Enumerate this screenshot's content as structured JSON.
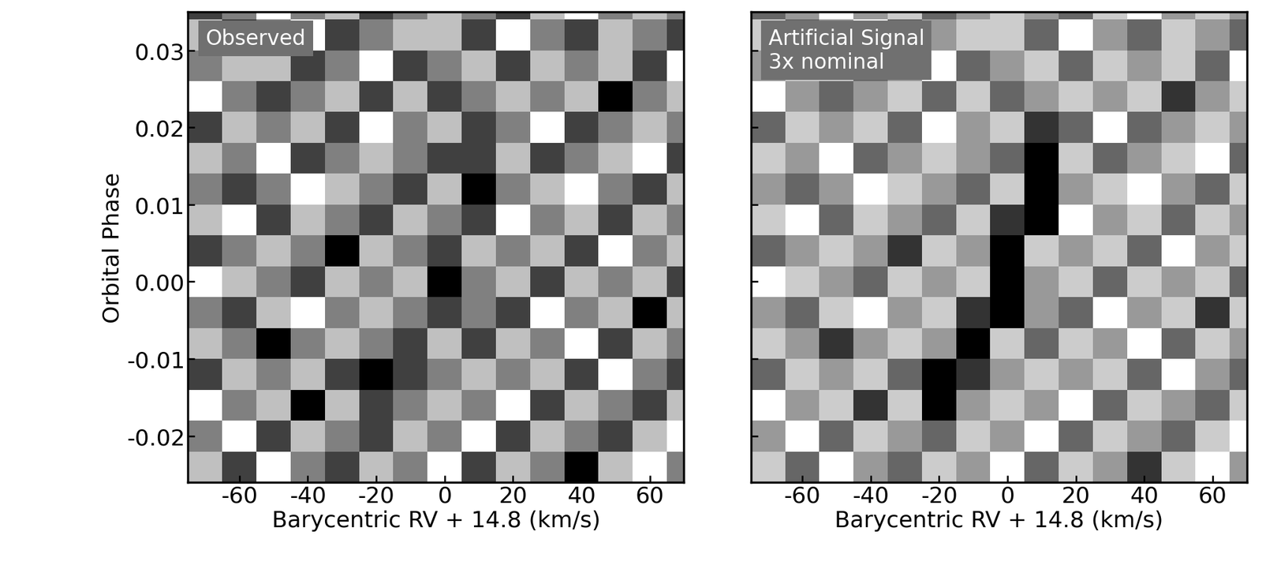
{
  "chart_data": [
    {
      "type": "heatmap",
      "annotation": "Observed",
      "xlabel": "Barycentric RV + 14.8 (km/s)",
      "ylabel": "Orbital Phase",
      "x": [
        -70,
        -60,
        -50,
        -40,
        -30,
        -20,
        -10,
        0,
        10,
        20,
        30,
        40,
        50,
        60,
        70
      ],
      "y": [
        -0.024,
        -0.02,
        -0.016,
        -0.012,
        -0.008,
        -0.004,
        0.0,
        0.004,
        0.008,
        0.012,
        0.016,
        0.02,
        0.024,
        0.028,
        0.032,
        0.036
      ],
      "cells": [
        [
          1,
          -1,
          2,
          0,
          -1,
          1,
          0,
          2,
          -1,
          1,
          0,
          -2,
          1,
          2,
          0
        ],
        [
          0,
          2,
          -1,
          1,
          0,
          -1,
          1,
          0,
          2,
          -1,
          1,
          0,
          -1,
          1,
          2
        ],
        [
          2,
          0,
          1,
          -2,
          1,
          -1,
          0,
          1,
          0,
          2,
          -1,
          1,
          0,
          -1,
          1
        ],
        [
          -1,
          1,
          0,
          1,
          -1,
          -2,
          -1,
          0,
          1,
          0,
          1,
          -1,
          2,
          0,
          -1
        ],
        [
          1,
          0,
          -2,
          0,
          1,
          0,
          -1,
          1,
          -1,
          1,
          0,
          2,
          -1,
          1,
          0
        ],
        [
          0,
          -1,
          1,
          2,
          0,
          1,
          0,
          -1,
          0,
          -1,
          2,
          0,
          1,
          -2,
          1
        ],
        [
          2,
          1,
          0,
          -1,
          1,
          0,
          1,
          -2,
          0,
          1,
          -1,
          1,
          0,
          1,
          -1
        ],
        [
          -1,
          0,
          1,
          0,
          -2,
          1,
          0,
          -1,
          1,
          0,
          1,
          -1,
          2,
          0,
          1
        ],
        [
          1,
          2,
          -1,
          1,
          0,
          -1,
          1,
          0,
          -1,
          2,
          0,
          1,
          -1,
          1,
          0
        ],
        [
          0,
          -1,
          0,
          2,
          1,
          0,
          -1,
          1,
          -2,
          0,
          1,
          2,
          0,
          -1,
          1
        ],
        [
          1,
          0,
          2,
          -1,
          0,
          1,
          0,
          -1,
          -1,
          1,
          -1,
          0,
          1,
          2,
          -1
        ],
        [
          -1,
          1,
          0,
          1,
          -1,
          2,
          0,
          1,
          -1,
          0,
          2,
          -1,
          0,
          1,
          0
        ],
        [
          2,
          0,
          -1,
          0,
          1,
          -1,
          1,
          -1,
          0,
          1,
          0,
          1,
          -2,
          0,
          1
        ],
        [
          0,
          1,
          1,
          -1,
          0,
          2,
          -1,
          0,
          1,
          -1,
          1,
          0,
          1,
          -1,
          2
        ],
        [
          1,
          -1,
          0,
          2,
          -1,
          0,
          1,
          1,
          -1,
          2,
          0,
          -1,
          1,
          0,
          -1
        ],
        [
          -1,
          0,
          2,
          0,
          1,
          -1,
          0,
          1,
          0,
          -1,
          1,
          2,
          0,
          1,
          0
        ]
      ],
      "xlim": [
        -75,
        70
      ],
      "ylim": [
        -0.026,
        0.035
      ],
      "xticks": [
        -60,
        -40,
        -20,
        0,
        20,
        40,
        60
      ],
      "yticks": [
        -0.02,
        -0.01,
        {
          "value": 0,
          "label": "0.00"
        },
        0.01,
        0.02,
        0.03
      ]
    },
    {
      "type": "heatmap",
      "annotation": "Artificial Signal\n3x nominal",
      "xlabel": "Barycentric RV + 14.8 (km/s)",
      "tick_labels": "x",
      "x": [
        -70,
        -60,
        -50,
        -40,
        -30,
        -20,
        -10,
        0,
        10,
        20,
        30,
        40,
        50,
        60,
        70
      ],
      "y": [
        -0.024,
        -0.02,
        -0.016,
        -0.012,
        -0.008,
        -0.004,
        0.0,
        0.004,
        0.008,
        0.012,
        0.016,
        0.02,
        0.024,
        0.028,
        0.032,
        0.036
      ],
      "cells": [
        [
          1,
          -1,
          2,
          0,
          -1,
          1,
          0,
          2,
          -1,
          1,
          0,
          -2,
          1,
          2,
          0
        ],
        [
          0,
          2,
          -1,
          1,
          0,
          -1,
          1,
          0,
          2,
          -1,
          1,
          0,
          -1,
          1,
          2
        ],
        [
          2,
          0,
          1,
          -2,
          1,
          -3,
          0,
          1,
          0,
          2,
          -1,
          1,
          0,
          -1,
          1
        ],
        [
          -1,
          1,
          0,
          1,
          -1,
          -3,
          -2,
          0,
          1,
          0,
          1,
          -1,
          2,
          0,
          -1
        ],
        [
          1,
          0,
          -2,
          0,
          1,
          0,
          -3,
          1,
          -1,
          1,
          0,
          2,
          -1,
          1,
          0
        ],
        [
          0,
          -1,
          1,
          2,
          0,
          1,
          -2,
          -3,
          0,
          -1,
          2,
          0,
          1,
          -2,
          1
        ],
        [
          2,
          1,
          0,
          -1,
          1,
          0,
          1,
          -3,
          0,
          1,
          -1,
          1,
          0,
          1,
          -1
        ],
        [
          -1,
          0,
          1,
          0,
          -2,
          1,
          0,
          -3,
          1,
          0,
          1,
          -1,
          2,
          0,
          1
        ],
        [
          1,
          2,
          -1,
          1,
          0,
          -1,
          1,
          -2,
          -3,
          2,
          0,
          1,
          -1,
          1,
          0
        ],
        [
          0,
          -1,
          0,
          2,
          1,
          0,
          -1,
          1,
          -3,
          0,
          1,
          2,
          0,
          -1,
          1
        ],
        [
          1,
          0,
          2,
          -1,
          0,
          1,
          0,
          -1,
          -3,
          1,
          -1,
          0,
          1,
          2,
          -1
        ],
        [
          -1,
          1,
          0,
          1,
          -1,
          2,
          0,
          1,
          -2,
          -1,
          2,
          -1,
          0,
          1,
          0
        ],
        [
          2,
          0,
          -1,
          0,
          1,
          -1,
          1,
          -1,
          0,
          1,
          0,
          1,
          -2,
          0,
          1
        ],
        [
          0,
          1,
          1,
          -1,
          0,
          2,
          -1,
          0,
          1,
          -1,
          1,
          0,
          1,
          -1,
          2
        ],
        [
          1,
          -1,
          0,
          2,
          -1,
          0,
          1,
          1,
          -1,
          2,
          0,
          -1,
          1,
          0,
          -1
        ],
        [
          -1,
          0,
          2,
          0,
          1,
          -1,
          0,
          1,
          0,
          -1,
          1,
          2,
          0,
          1,
          0
        ]
      ],
      "xlim": [
        -75,
        70
      ],
      "ylim": [
        -0.026,
        0.035
      ],
      "xticks": [
        -60,
        -40,
        -20,
        0,
        20,
        40,
        60
      ],
      "yticks": [
        -0.02,
        -0.01,
        {
          "value": 0,
          "label": "0.00"
        },
        0.01,
        0.02,
        0.03
      ]
    }
  ]
}
